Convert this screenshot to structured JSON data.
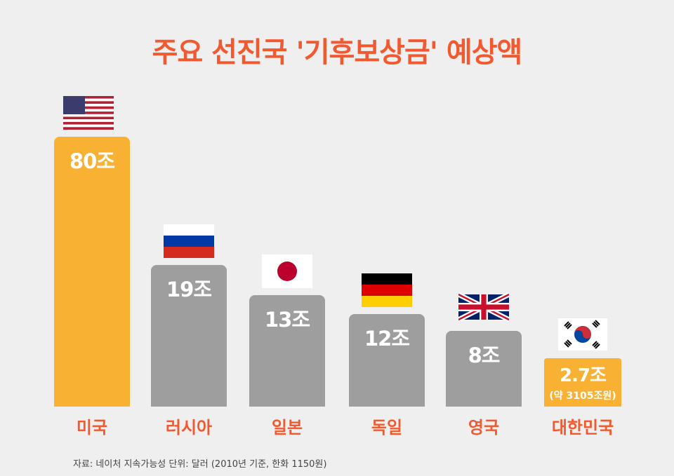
{
  "title": "주요 선진국 '기후보상금' 예상액",
  "source": "자료: 네이처 지속가능성   단위: 달러 (2010년 기준, 한화 1150원)",
  "colors": {
    "title": "#f15a30",
    "highlight": "#f8b133",
    "default": "#9e9e9e",
    "background": "#efefef"
  },
  "chart_data": {
    "type": "bar",
    "title": "주요 선진국 '기후보상금' 예상액",
    "unit": "조 달러",
    "categories": [
      "미국",
      "러시아",
      "일본",
      "독일",
      "영국",
      "대한민국"
    ],
    "values": [
      80,
      19,
      13,
      12,
      8,
      2.7
    ],
    "data_labels": [
      "80조",
      "19조",
      "13조",
      "12조",
      "8조",
      "2.7조"
    ],
    "extra_labels": [
      "",
      "",
      "",
      "",
      "",
      "(약 3105조원)"
    ],
    "flags": [
      "us-flag-icon",
      "russia-flag-icon",
      "japan-flag-icon",
      "germany-flag-icon",
      "uk-flag-icon",
      "korea-flag-icon"
    ],
    "highlight": [
      "미국",
      "대한민국"
    ],
    "grid": false,
    "legend": "none"
  }
}
